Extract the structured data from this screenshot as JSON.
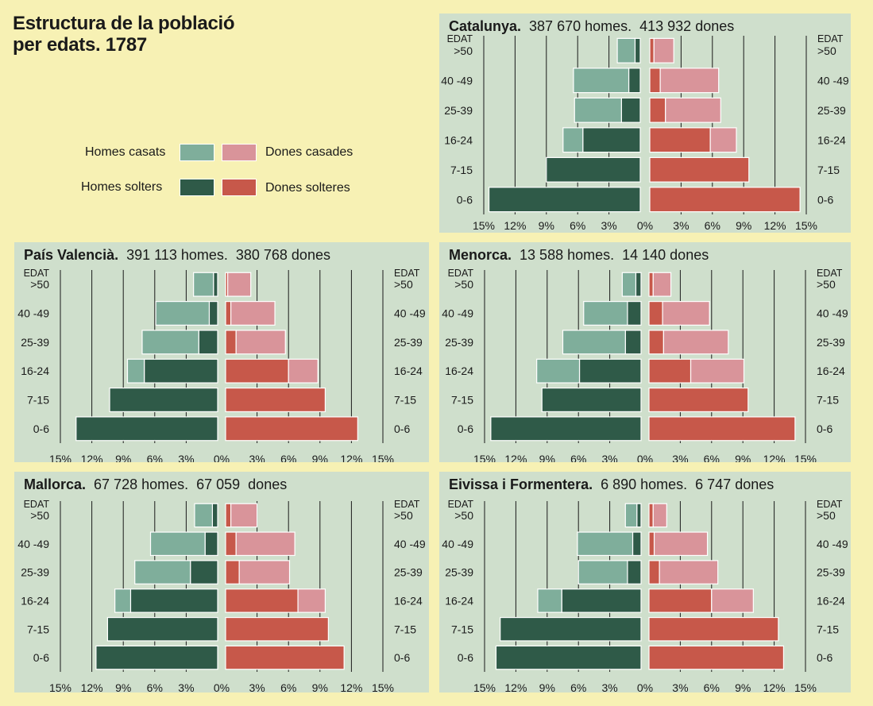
{
  "title": {
    "line1": "Estructura de la població",
    "line2": "per edats. 1787"
  },
  "legend": {
    "homes_casats": "Homes casats",
    "homes_solters": "Homes solters",
    "dones_casades": "Dones casades",
    "dones_solteres": "Dones solteres"
  },
  "colors": {
    "homes_casats": "#7fae9b",
    "homes_solters": "#2f5a48",
    "dones_casades": "#d9949a",
    "dones_solteres": "#c7584a",
    "panel": "#cfdfcc",
    "page": "#f7f1b4"
  },
  "axis": {
    "edat_label": "EDAT",
    "x_ticks": [
      "15%",
      "12%",
      "9%",
      "6%",
      "3%",
      "0%",
      "3%",
      "6%",
      "9%",
      "12%",
      "15%"
    ]
  },
  "chart_data": [
    {
      "type": "bar",
      "region": "Catalunya.",
      "stats": "387 670 homes.  413 932 dones",
      "categories": [
        "0-6",
        "7-15",
        "16-24",
        "25-39",
        "40 -49",
        ">50"
      ],
      "xlim": [
        -15,
        15
      ],
      "series": [
        {
          "name": "Homes solters",
          "values": [
            14.5,
            9.0,
            5.5,
            1.8,
            1.1,
            0.5
          ]
        },
        {
          "name": "Homes casats",
          "values": [
            0,
            0,
            1.9,
            4.5,
            5.3,
            1.7
          ]
        },
        {
          "name": "Dones solteres",
          "values": [
            14.4,
            9.5,
            5.8,
            1.5,
            1.0,
            0.4
          ]
        },
        {
          "name": "Dones casades",
          "values": [
            0,
            0,
            2.5,
            5.3,
            5.6,
            1.9
          ]
        }
      ]
    },
    {
      "type": "bar",
      "region": "País Valencià.",
      "stats": "391 113 homes.  380 768 dones",
      "categories": [
        "0-6",
        "7-15",
        "16-24",
        "25-39",
        "40 -49",
        ">50"
      ],
      "xlim": [
        -15,
        15
      ],
      "series": [
        {
          "name": "Homes solters",
          "values": [
            13.5,
            10.3,
            7.0,
            1.8,
            0.8,
            0.4
          ]
        },
        {
          "name": "Homes casats",
          "values": [
            0,
            0,
            1.6,
            5.4,
            5.1,
            1.9
          ]
        },
        {
          "name": "Dones solteres",
          "values": [
            12.6,
            9.5,
            6.0,
            1.0,
            0.5,
            0.2
          ]
        },
        {
          "name": "Dones casades",
          "values": [
            0,
            0,
            2.8,
            4.7,
            4.2,
            2.2
          ]
        }
      ]
    },
    {
      "type": "bar",
      "region": "Menorca.",
      "stats": "13 588 homes.  14 140 dones",
      "categories": [
        "0-6",
        "7-15",
        "16-24",
        "25-39",
        "40 -49",
        ">50"
      ],
      "xlim": [
        -15,
        15
      ],
      "series": [
        {
          "name": "Homes solters",
          "values": [
            14.4,
            9.5,
            5.9,
            1.5,
            1.3,
            0.5
          ]
        },
        {
          "name": "Homes casats",
          "values": [
            0,
            0,
            4.1,
            6.0,
            4.2,
            1.3
          ]
        },
        {
          "name": "Dones solteres",
          "values": [
            14.0,
            9.5,
            4.0,
            1.4,
            1.3,
            0.4
          ]
        },
        {
          "name": "Dones casades",
          "values": [
            0,
            0,
            5.1,
            6.2,
            4.5,
            1.7
          ]
        }
      ]
    },
    {
      "type": "bar",
      "region": "Mallorca.",
      "stats": "67 728 homes.  67 059  dones",
      "categories": [
        "0-6",
        "7-15",
        "16-24",
        "25-39",
        "40 -49",
        ">50"
      ],
      "xlim": [
        -15,
        15
      ],
      "series": [
        {
          "name": "Homes solters",
          "values": [
            11.6,
            10.5,
            8.3,
            2.6,
            1.2,
            0.5
          ]
        },
        {
          "name": "Homes casats",
          "values": [
            0,
            0,
            1.5,
            5.3,
            5.2,
            1.7
          ]
        },
        {
          "name": "Dones solteres",
          "values": [
            11.3,
            9.8,
            6.9,
            1.3,
            1.0,
            0.5
          ]
        },
        {
          "name": "Dones casades",
          "values": [
            0,
            0,
            2.6,
            4.8,
            5.6,
            2.5
          ]
        }
      ]
    },
    {
      "type": "bar",
      "region": "Eivissa i Formentera.",
      "stats": "6 890 homes.  6 747 dones",
      "categories": [
        "0-6",
        "7-15",
        "16-24",
        "25-39",
        "40 -49",
        ">50"
      ],
      "xlim": [
        -15,
        15
      ],
      "series": [
        {
          "name": "Homes solters",
          "values": [
            13.9,
            13.5,
            7.6,
            1.3,
            0.8,
            0.4
          ]
        },
        {
          "name": "Homes casats",
          "values": [
            0,
            0,
            2.3,
            4.7,
            5.3,
            1.1
          ]
        },
        {
          "name": "Dones solteres",
          "values": [
            12.9,
            12.4,
            6.0,
            1.0,
            0.5,
            0.4
          ]
        },
        {
          "name": "Dones casades",
          "values": [
            0,
            0,
            4.0,
            5.6,
            5.1,
            1.3
          ]
        }
      ]
    }
  ]
}
